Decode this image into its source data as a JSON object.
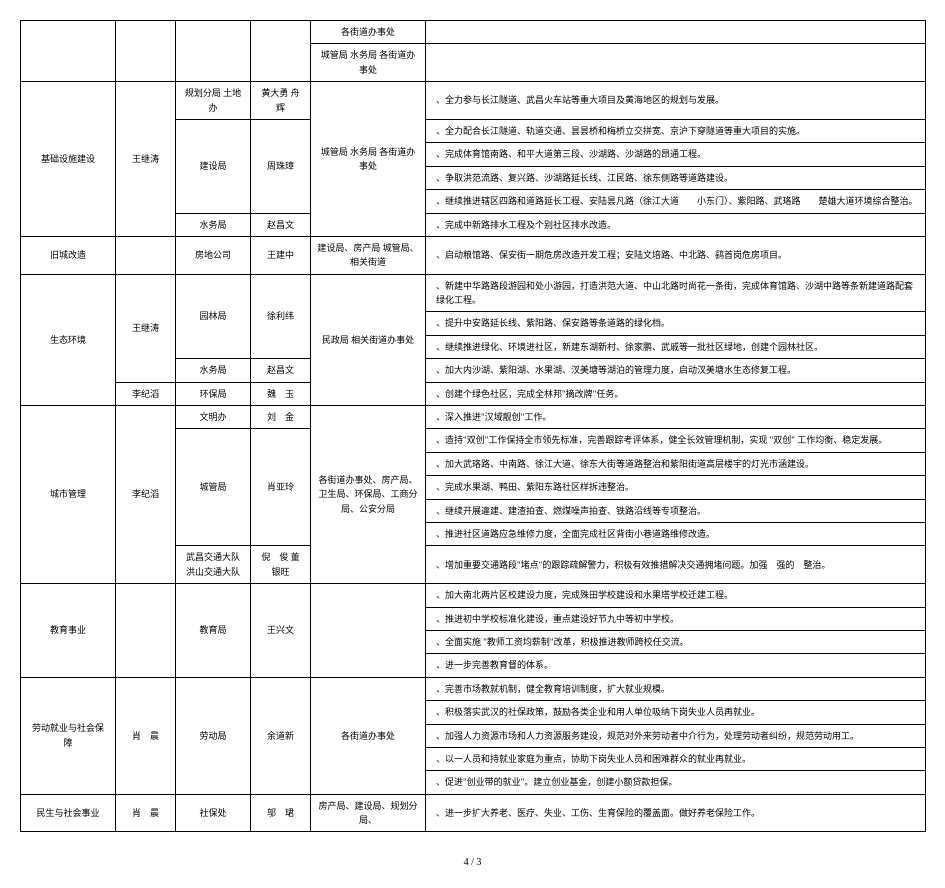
{
  "footer": "4 / 3",
  "table": {
    "col_widths": [
      "95px",
      "60px",
      "75px",
      "60px",
      "115px",
      "500px"
    ],
    "background": "#ffffff",
    "border_color": "#000000",
    "font_size": 9
  },
  "rows": {
    "r0c4": "各街道办事处",
    "r0c5": "",
    "r1c0": "基础设施建设",
    "r1c1": "王继涛",
    "r1c2": "规划分局  土地办",
    "r1c3": "黄大勇  舟辉",
    "r1c4": "城管局  水务局  各街道办事处",
    "r1c5": "、全力参与长江隧道、武昌火车站等重大项目及黄海地区的规划与发展。",
    "r2c2": "建设局",
    "r2c3": "周珠璋",
    "r2c5a": "、全力配合长江隧道、轨道交通、昙昙桥和梅桥立交拼宽、京沪下穿隧道等重大项目的实施。",
    "r2c5b": "、完成体育馆南路、和平大道第三段、沙湖路、沙湖路的昂通工程。",
    "r2c5c": "、争取洪范流路、复兴路、沙湖路延长线、江民路、徐东侧路等道路建设。",
    "r2c5d": "、继续推进辖区四路和道路延长工程、安陆昙凡路（徐江大道　　小东门）、紫阳路、武珞路　　楚雄大道环境综合整治。",
    "r3c2": "水务局",
    "r3c3": "赵昌文",
    "r3c5": "、完成中新路排水工程及个别社区排水改造。",
    "r4c0": "旧城改造",
    "r4c2": "房地公司",
    "r4c3": "王建中",
    "r4c4": "建设局、房产局  城管局、相关街道",
    "r4c5": "、启动粮馆路、保安街一期危房改造开发工程；安陆文培路、中北路、鹞首岗危房项目。",
    "r5c0": "生态环境",
    "r5c1a": "王继涛",
    "r5c1b": "李纪滔",
    "r5c2": "园林局",
    "r5c3": "徐利纬",
    "r5c4": "民政局  相关街道办事处",
    "r5c5a": "、新建中华路路段游园和处小游园，打造洪范大道、中山北路时尚花一条街，完成体育馆路、沙湖中路等条新建道路配套绿化工程。",
    "r5c5b": "、提升中安路延长线、紫阳路、保安路等条道路的绿化档。",
    "r5c5c": "、继续推进绿化、环境进社区，新建东湖新村、徐家鹏、武戚等一批社区绿地，创建个园林社区。",
    "r6c2": "水务局",
    "r6c3": "赵昌文",
    "r6c5": "、加大内沙湖、紫阳湖、水果湖、汊美塘等湖泊的管理力度，启动汊美塘水生态修复工程。",
    "r7c2": "环保局",
    "r7c3": "魏　玉",
    "r7c5": "、创建个绿色社区，完成全林邦\"摘改牌\"任务。",
    "r8c0": "城市管理",
    "r8c1": "李纪滔",
    "r8c2": "文明办",
    "r8c3": "刘　金",
    "r8c4": "各街道办事处、房产局、  卫生局、环保局、工商分  局、公安分局",
    "r8c5": "、深入推进\"汉域靓创\"工作。",
    "r9c2": "城管局",
    "r9c3": "肖亚玲",
    "r9c5a": "、造持\"双创\"工作保持全市领先标准，完善跟踪考评体系，健全长效管理机制，实现 \"双创\" 工作均衡、稳定发展。",
    "r9c5b": "、加大武珞路、中南路、徐江大道、徐东大街等道路整治和紫阳街道高层楼宇的灯光市涵建设。",
    "r9c5c": "、完成水果湖、鸭田、紫阳东路社区样拆违整治。",
    "r9c5d": "、继续开展違建、建渣拍查、燃煤噪声拍查、铁路沿线等专项整治。",
    "r9c5e": "、推进社区道路应急维修力度，全面完成社区背街小巷道路维修改造。",
    "r10c2": "武昌交通大队  洪山交通大队",
    "r10c3": "倪　俊  董银旺",
    "r10c5": "、增加重要交通路段\"堵点\"的跟踪疏解警力，积极有效推措解决交通拥堵问题。加强　强的　整治。",
    "r11c0": "教育事业",
    "r11c2": "教育局",
    "r11c3": "王兴文",
    "r11c5a": "、加大南北两片区校建设力度，完成殊田学校建设和水果塔学校迁建工程。",
    "r11c5b": "、推进初中学校标准化建设，重点建设好节九中等初中学校。",
    "r11c5c": "、全面实施 \"教师工资均薪制\"改革，积极推进教师跨校任交流。",
    "r11c5d": "、进一步完善教育督的体系。",
    "r12c0": "劳动就业与社会保  障",
    "r12c1": "肖　晨",
    "r12c2": "劳动局",
    "r12c3": "余道新",
    "r12c4": "各街道办事处",
    "r12c5a": "、完善市场教就机制，健全教育培训制度，扩大就业规模。",
    "r12c5b": "、积极落实武汉的社保政策，鼓励各类企业和用人单位吸纳下岗失业人员再就业。",
    "r12c5c": "、加强人力资源市场和人力资源服务建设，规范对外来劳动者中介行为，处理劳动者纠纷，规范劳动用工。",
    "r12c5d": "、以一人员和持就业家庭为重点，协助下岗失业人员和困难群众的就业再就业。",
    "r12c5e": "、促进\"创业带的就业\"。建立创业基金，创建小额贷款担保。",
    "r13c0": "民生与社会事业",
    "r13c1": "肖　晨",
    "r13c2": "社保处",
    "r13c3": "邬　珺",
    "r13c4": "房产局、建设局、规划分局、",
    "r13c5": "、进一步扩大养老、医疗、失业、工伤、生育保险的覆盖面。做好养老保险工作。"
  }
}
